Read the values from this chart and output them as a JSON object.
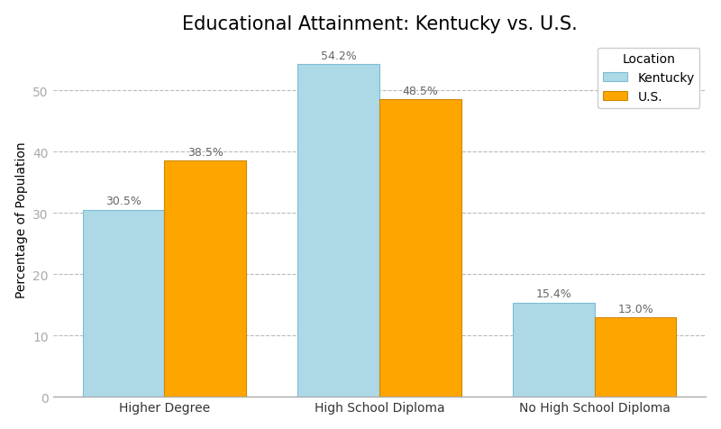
{
  "title": "Educational Attainment: Kentucky vs. U.S.",
  "categories": [
    "Higher Degree",
    "High School Diploma",
    "No High School Diploma"
  ],
  "kentucky_values": [
    30.5,
    54.2,
    15.4
  ],
  "us_values": [
    38.5,
    48.5,
    13.0
  ],
  "kentucky_color": "#ADD8E6",
  "us_color": "#FFA500",
  "kentucky_edge_color": "#7BBDD4",
  "us_edge_color": "#CC8800",
  "ylabel": "Percentage of Population",
  "legend_title": "Location",
  "legend_labels": [
    "Kentucky",
    "U.S."
  ],
  "ylim": [
    0,
    58
  ],
  "bar_width": 0.38,
  "figure_bg_color": "#FFFFFF",
  "axes_bg_color": "#FFFFFF",
  "grid_color": "#BBBBBB",
  "title_fontsize": 15,
  "label_fontsize": 10,
  "tick_fontsize": 10,
  "annotation_fontsize": 9,
  "annotation_color": "#666666",
  "spine_color": "#AAAAAA"
}
